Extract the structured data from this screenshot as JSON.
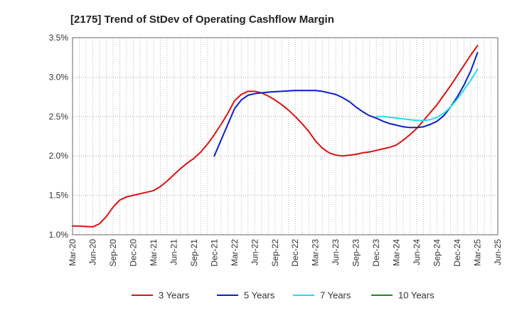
{
  "chart_data": {
    "type": "line",
    "title": "[2175]  Trend of StDev of Operating Cashflow Margin",
    "xlabel": "",
    "ylabel": "",
    "ylim": [
      1.0,
      3.5
    ],
    "y_ticks": [
      "1.0%",
      "1.5%",
      "2.0%",
      "2.5%",
      "3.0%",
      "3.5%"
    ],
    "y_tick_values": [
      1.0,
      1.5,
      2.0,
      2.5,
      3.0,
      3.5
    ],
    "x_ticks": [
      "Mar-20",
      "Jun-20",
      "Sep-20",
      "Dec-20",
      "Mar-21",
      "Jun-21",
      "Sep-21",
      "Dec-21",
      "Mar-22",
      "Jun-22",
      "Sep-22",
      "Dec-22",
      "Mar-23",
      "Jun-23",
      "Sep-23",
      "Dec-23",
      "Mar-24",
      "Jun-24",
      "Sep-24",
      "Dec-24",
      "Mar-25",
      "Jun-25"
    ],
    "x_tick_values": [
      "2020-03",
      "2020-06",
      "2020-09",
      "2020-12",
      "2021-03",
      "2021-06",
      "2021-09",
      "2021-12",
      "2022-03",
      "2022-06",
      "2022-09",
      "2022-12",
      "2023-03",
      "2023-06",
      "2023-09",
      "2023-12",
      "2024-03",
      "2024-06",
      "2024-09",
      "2024-12",
      "2025-03",
      "2025-06"
    ],
    "grid": true,
    "legend_position": "bottom",
    "series": [
      {
        "name": "3 Years",
        "color": "#dd1111",
        "points": [
          [
            "2020-03",
            1.11
          ],
          [
            "2020-04",
            1.11
          ],
          [
            "2020-05",
            1.105
          ],
          [
            "2020-06",
            1.1
          ],
          [
            "2020-07",
            1.14
          ],
          [
            "2020-08",
            1.23
          ],
          [
            "2020-09",
            1.35
          ],
          [
            "2020-10",
            1.44
          ],
          [
            "2020-11",
            1.48
          ],
          [
            "2020-12",
            1.5
          ],
          [
            "2021-01",
            1.52
          ],
          [
            "2021-02",
            1.54
          ],
          [
            "2021-03",
            1.56
          ],
          [
            "2021-04",
            1.61
          ],
          [
            "2021-05",
            1.68
          ],
          [
            "2021-06",
            1.76
          ],
          [
            "2021-07",
            1.84
          ],
          [
            "2021-08",
            1.91
          ],
          [
            "2021-09",
            1.97
          ],
          [
            "2021-10",
            2.05
          ],
          [
            "2021-11",
            2.15
          ],
          [
            "2021-12",
            2.27
          ],
          [
            "2022-01",
            2.4
          ],
          [
            "2022-02",
            2.54
          ],
          [
            "2022-03",
            2.7
          ],
          [
            "2022-04",
            2.78
          ],
          [
            "2022-05",
            2.82
          ],
          [
            "2022-06",
            2.82
          ],
          [
            "2022-07",
            2.8
          ],
          [
            "2022-08",
            2.76
          ],
          [
            "2022-09",
            2.71
          ],
          [
            "2022-10",
            2.65
          ],
          [
            "2022-11",
            2.58
          ],
          [
            "2022-12",
            2.5
          ],
          [
            "2023-01",
            2.41
          ],
          [
            "2023-02",
            2.31
          ],
          [
            "2023-03",
            2.19
          ],
          [
            "2023-04",
            2.1
          ],
          [
            "2023-05",
            2.04
          ],
          [
            "2023-06",
            2.01
          ],
          [
            "2023-07",
            2.0
          ],
          [
            "2023-08",
            2.01
          ],
          [
            "2023-09",
            2.02
          ],
          [
            "2023-10",
            2.04
          ],
          [
            "2023-11",
            2.05
          ],
          [
            "2023-12",
            2.07
          ],
          [
            "2024-01",
            2.09
          ],
          [
            "2024-02",
            2.11
          ],
          [
            "2024-03",
            2.14
          ],
          [
            "2024-04",
            2.2
          ],
          [
            "2024-05",
            2.27
          ],
          [
            "2024-06",
            2.35
          ],
          [
            "2024-07",
            2.45
          ],
          [
            "2024-08",
            2.55
          ],
          [
            "2024-09",
            2.65
          ],
          [
            "2024-10",
            2.77
          ],
          [
            "2024-11",
            2.89
          ],
          [
            "2024-12",
            3.02
          ],
          [
            "2025-01",
            3.15
          ],
          [
            "2025-02",
            3.28
          ],
          [
            "2025-03",
            3.4
          ]
        ]
      },
      {
        "name": "5 Years",
        "color": "#0a1fcc",
        "points": [
          [
            "2021-12",
            2.0
          ],
          [
            "2022-01",
            2.2
          ],
          [
            "2022-02",
            2.4
          ],
          [
            "2022-03",
            2.6
          ],
          [
            "2022-04",
            2.71
          ],
          [
            "2022-05",
            2.77
          ],
          [
            "2022-06",
            2.79
          ],
          [
            "2022-07",
            2.8
          ],
          [
            "2022-08",
            2.81
          ],
          [
            "2022-09",
            2.815
          ],
          [
            "2022-10",
            2.82
          ],
          [
            "2022-11",
            2.825
          ],
          [
            "2022-12",
            2.83
          ],
          [
            "2023-01",
            2.83
          ],
          [
            "2023-02",
            2.83
          ],
          [
            "2023-03",
            2.83
          ],
          [
            "2023-04",
            2.82
          ],
          [
            "2023-05",
            2.8
          ],
          [
            "2023-06",
            2.78
          ],
          [
            "2023-07",
            2.74
          ],
          [
            "2023-08",
            2.69
          ],
          [
            "2023-09",
            2.62
          ],
          [
            "2023-10",
            2.56
          ],
          [
            "2023-11",
            2.51
          ],
          [
            "2023-12",
            2.48
          ],
          [
            "2024-01",
            2.44
          ],
          [
            "2024-02",
            2.41
          ],
          [
            "2024-03",
            2.39
          ],
          [
            "2024-04",
            2.37
          ],
          [
            "2024-05",
            2.36
          ],
          [
            "2024-06",
            2.36
          ],
          [
            "2024-07",
            2.37
          ],
          [
            "2024-08",
            2.4
          ],
          [
            "2024-09",
            2.44
          ],
          [
            "2024-10",
            2.51
          ],
          [
            "2024-11",
            2.62
          ],
          [
            "2024-12",
            2.75
          ],
          [
            "2025-01",
            2.9
          ],
          [
            "2025-02",
            3.08
          ],
          [
            "2025-03",
            3.31
          ]
        ]
      },
      {
        "name": "7 Years",
        "color": "#22ddee",
        "points": [
          [
            "2023-12",
            2.5
          ],
          [
            "2024-01",
            2.5
          ],
          [
            "2024-02",
            2.49
          ],
          [
            "2024-03",
            2.48
          ],
          [
            "2024-04",
            2.47
          ],
          [
            "2024-05",
            2.46
          ],
          [
            "2024-06",
            2.45
          ],
          [
            "2024-07",
            2.45
          ],
          [
            "2024-08",
            2.46
          ],
          [
            "2024-09",
            2.49
          ],
          [
            "2024-10",
            2.54
          ],
          [
            "2024-11",
            2.62
          ],
          [
            "2024-12",
            2.72
          ],
          [
            "2025-01",
            2.84
          ],
          [
            "2025-02",
            2.96
          ],
          [
            "2025-03",
            3.1
          ]
        ]
      },
      {
        "name": "10 Years",
        "color": "#228822",
        "points": []
      }
    ]
  }
}
